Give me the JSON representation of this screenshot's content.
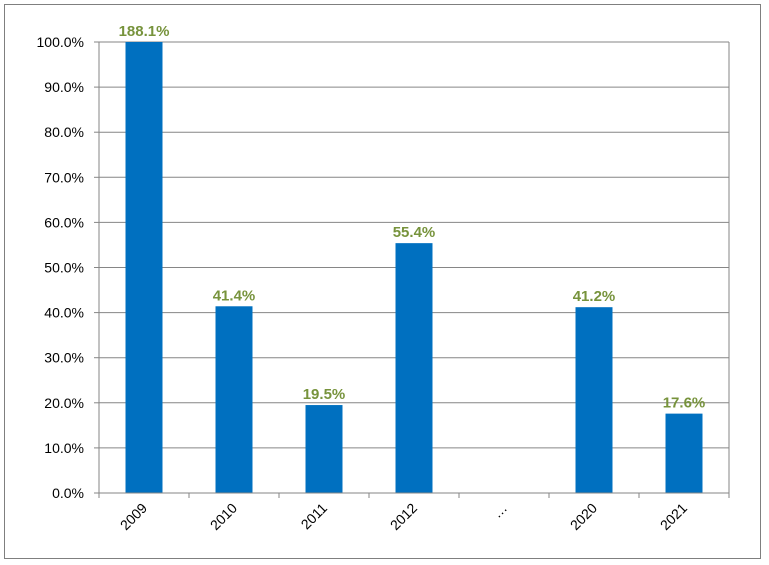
{
  "chart_data": {
    "type": "bar",
    "categories": [
      "2009",
      "2010",
      "2011",
      "2012",
      "…",
      "2020",
      "2021"
    ],
    "values": [
      188.1,
      41.4,
      19.5,
      55.4,
      null,
      41.2,
      17.6
    ],
    "data_labels": [
      "188.1%",
      "41.4%",
      "19.5%",
      "55.4%",
      "",
      "41.2%",
      "17.6%"
    ],
    "ylim": [
      0,
      100
    ],
    "y_ticks": [
      "0.0%",
      "10.0%",
      "20.0%",
      "30.0%",
      "40.0%",
      "50.0%",
      "60.0%",
      "70.0%",
      "80.0%",
      "90.0%",
      "100.0%"
    ],
    "grid": true,
    "legend": "none",
    "title": "",
    "xlabel": "",
    "ylabel": ""
  },
  "colors": {
    "bar": "#0070c0",
    "data_label": "#77933c",
    "grid": "#868686",
    "frame": "#7f7f7f"
  }
}
